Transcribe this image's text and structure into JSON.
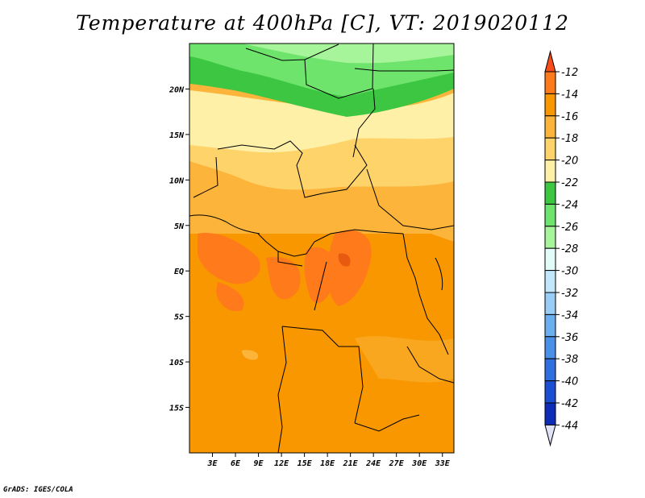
{
  "title": "Temperature at 400hPa [C], VT: 2019020112",
  "credit": "GrADS: IGES/COLA",
  "map": {
    "lon_range": [
      0,
      34.5
    ],
    "lat_range": [
      -20,
      25
    ],
    "lat_ticks": [
      {
        "value": 20,
        "label": "20N"
      },
      {
        "value": 15,
        "label": "15N"
      },
      {
        "value": 10,
        "label": "10N"
      },
      {
        "value": 5,
        "label": "5N"
      },
      {
        "value": 0,
        "label": "EQ"
      },
      {
        "value": -5,
        "label": "5S"
      },
      {
        "value": -10,
        "label": "10S"
      },
      {
        "value": -15,
        "label": "15S"
      }
    ],
    "lon_ticks": [
      {
        "value": 3,
        "label": "3E"
      },
      {
        "value": 6,
        "label": "6E"
      },
      {
        "value": 9,
        "label": "9E"
      },
      {
        "value": 12,
        "label": "12E"
      },
      {
        "value": 15,
        "label": "15E"
      },
      {
        "value": 18,
        "label": "18E"
      },
      {
        "value": 21,
        "label": "21E"
      },
      {
        "value": 24,
        "label": "24E"
      },
      {
        "value": 27,
        "label": "27E"
      },
      {
        "value": 30,
        "label": "30E"
      },
      {
        "value": 33,
        "label": "33E"
      }
    ]
  },
  "colorbar": {
    "levels": [
      "-12",
      "-14",
      "-16",
      "-18",
      "-20",
      "-22",
      "-24",
      "-26",
      "-28",
      "-30",
      "-32",
      "-34",
      "-36",
      "-38",
      "-40",
      "-42",
      "-44"
    ],
    "colors": [
      "#ff7a1a",
      "#f99700",
      "#fcb43a",
      "#fdd36a",
      "#fff0a8",
      "#3cc641",
      "#6ee46c",
      "#a7f59a",
      "#e1fcf9",
      "#c2e7fb",
      "#99cdf5",
      "#6ab0ef",
      "#4a90e9",
      "#2f6fe0",
      "#1b4fd3",
      "#0d2cb8",
      "#0a0e7f"
    ],
    "top_arrow_color": "#f64d1a",
    "bottom_arrow_color": "#e0e2f8"
  }
}
